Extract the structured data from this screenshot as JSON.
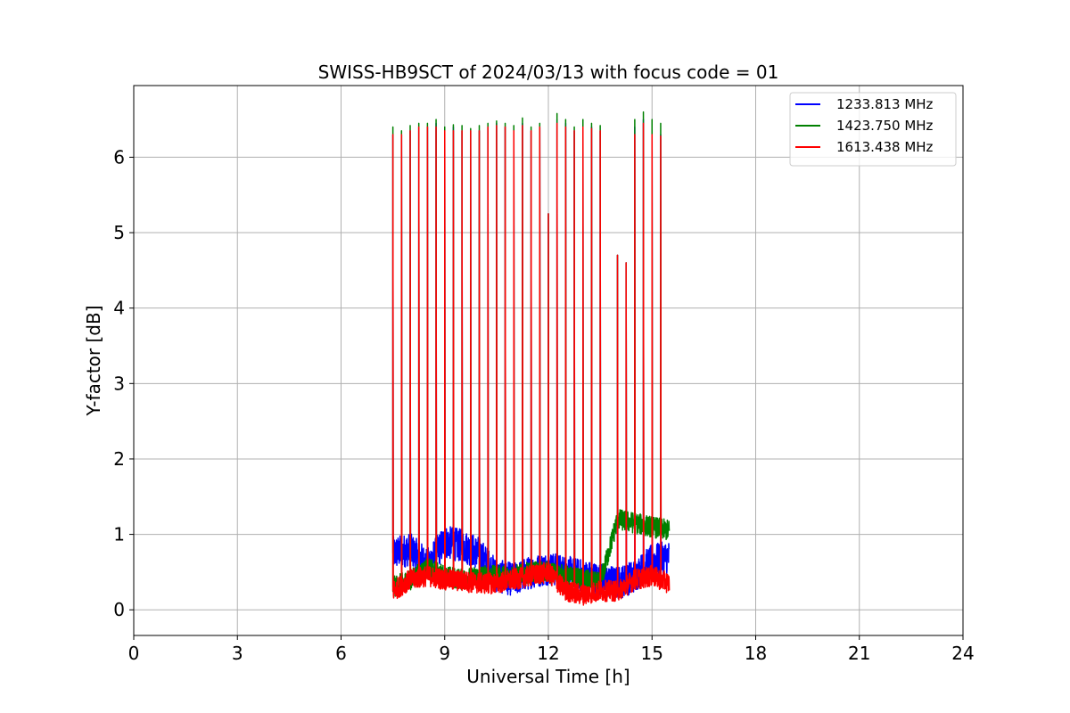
{
  "chart_data": {
    "type": "line",
    "title": "SWISS-HB9SCT of 2024/03/13 with focus code = 01",
    "xlabel": "Universal Time [h]",
    "ylabel": "Y-factor [dB]",
    "xlim": [
      0,
      24
    ],
    "ylim": [
      -0.34,
      6.95
    ],
    "xticks": [
      0,
      3,
      6,
      9,
      12,
      15,
      18,
      21,
      24
    ],
    "yticks": [
      0,
      1,
      2,
      3,
      4,
      5,
      6
    ],
    "grid": true,
    "legend_position": "top-right",
    "observation_start": 7.5,
    "observation_end": 15.5,
    "spike_times": [
      7.5,
      7.75,
      8.0,
      8.25,
      8.5,
      8.75,
      9.0,
      9.25,
      9.5,
      9.75,
      10.0,
      10.25,
      10.5,
      10.75,
      11.0,
      11.25,
      11.5,
      11.75,
      12.0,
      12.25,
      12.5,
      12.75,
      13.0,
      13.25,
      13.5,
      14.0,
      14.25,
      14.5,
      14.75,
      15.0,
      15.25
    ],
    "series": [
      {
        "name": "1233.813 MHz",
        "color": "#0000ff",
        "baseline": {
          "x": [
            7.5,
            8.0,
            8.5,
            9.0,
            9.5,
            10.0,
            10.5,
            11.0,
            11.5,
            12.0,
            12.5,
            13.0,
            13.5,
            14.0,
            14.5,
            15.0,
            15.5
          ],
          "y": [
            0.75,
            0.8,
            0.6,
            0.9,
            0.85,
            0.75,
            0.45,
            0.4,
            0.5,
            0.55,
            0.5,
            0.45,
            0.4,
            0.35,
            0.45,
            0.65,
            0.7
          ]
        },
        "spike_peaks": [
          6.3,
          6.3,
          6.35,
          6.4,
          6.4,
          6.45,
          6.35,
          6.4,
          6.35,
          6.35,
          6.35,
          6.4,
          6.45,
          6.4,
          6.35,
          6.45,
          6.35,
          6.4,
          5.25,
          6.5,
          6.45,
          6.35,
          6.4,
          6.4,
          6.35,
          4.7,
          4.6,
          6.4,
          6.5,
          6.35,
          6.3
        ]
      },
      {
        "name": "1423.750 MHz",
        "color": "#008000",
        "baseline": {
          "x": [
            7.5,
            8.0,
            8.5,
            9.0,
            9.5,
            10.0,
            10.5,
            11.0,
            11.5,
            12.0,
            12.5,
            13.0,
            13.5,
            14.0,
            14.5,
            15.0,
            15.5
          ],
          "y": [
            0.3,
            0.4,
            0.55,
            0.45,
            0.4,
            0.45,
            0.45,
            0.45,
            0.5,
            0.5,
            0.45,
            0.4,
            0.35,
            1.2,
            1.15,
            1.1,
            1.05
          ]
        },
        "spike_peaks": [
          6.4,
          6.35,
          6.42,
          6.45,
          6.45,
          6.5,
          6.4,
          6.43,
          6.42,
          6.38,
          6.42,
          6.45,
          6.48,
          6.45,
          6.42,
          6.52,
          6.4,
          6.45,
          5.25,
          6.58,
          6.5,
          6.4,
          6.5,
          6.45,
          6.42,
          4.7,
          4.6,
          6.5,
          6.6,
          6.5,
          6.45
        ]
      },
      {
        "name": "1613.438 MHz",
        "color": "#ff0000",
        "baseline": {
          "x": [
            7.5,
            8.0,
            8.5,
            9.0,
            9.5,
            10.0,
            10.5,
            11.0,
            11.5,
            12.0,
            12.5,
            13.0,
            13.5,
            14.0,
            14.5,
            15.0,
            15.5
          ],
          "y": [
            0.25,
            0.4,
            0.45,
            0.4,
            0.38,
            0.35,
            0.35,
            0.4,
            0.45,
            0.5,
            0.25,
            0.2,
            0.25,
            0.25,
            0.4,
            0.45,
            0.35
          ]
        },
        "spike_peaks": [
          6.3,
          6.3,
          6.35,
          6.4,
          6.4,
          6.4,
          6.35,
          6.35,
          6.35,
          6.35,
          6.35,
          6.4,
          6.42,
          6.4,
          6.35,
          6.42,
          6.35,
          6.4,
          5.25,
          6.45,
          6.4,
          6.35,
          6.4,
          6.38,
          6.35,
          4.7,
          4.6,
          6.3,
          6.45,
          6.3,
          6.28
        ]
      }
    ]
  }
}
